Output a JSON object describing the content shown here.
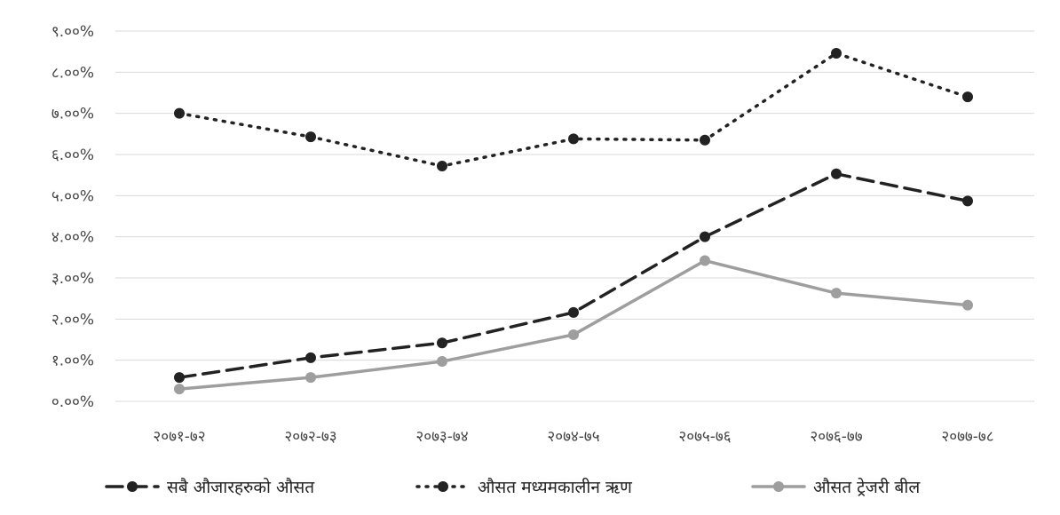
{
  "chart_data": {
    "type": "line",
    "title": "",
    "xlabel": "",
    "ylabel": "",
    "categories": [
      "२०७१-७२",
      "२०७२-७३",
      "२०७३-७४",
      "२०७४-७५",
      "२०७५-७६",
      "२०७६-७७",
      "२०७७-७८"
    ],
    "y_ticks": [
      "०.००%",
      "१.००%",
      "२.००%",
      "३.००%",
      "४.००%",
      "५.००%",
      "६.००%",
      "७.००%",
      "८.००%",
      "९.००%"
    ],
    "ylim": [
      0,
      9
    ],
    "grid": true,
    "legend_position": "bottom",
    "series": [
      {
        "name": "सबै औजारहरुको औसत",
        "style": "dashed",
        "color": "#222222",
        "values": [
          0.58,
          1.06,
          1.42,
          2.16,
          4.0,
          5.53,
          4.87
        ]
      },
      {
        "name": "औसत मध्यमकालीन ऋण",
        "style": "dotted",
        "color": "#222222",
        "values": [
          7.0,
          6.43,
          5.72,
          6.38,
          6.35,
          8.46,
          7.4
        ]
      },
      {
        "name": "औसत ट्रेजरी बील",
        "style": "solid",
        "color": "#9e9e9e",
        "values": [
          0.3,
          0.58,
          0.97,
          1.62,
          3.42,
          2.63,
          2.34
        ]
      }
    ]
  }
}
